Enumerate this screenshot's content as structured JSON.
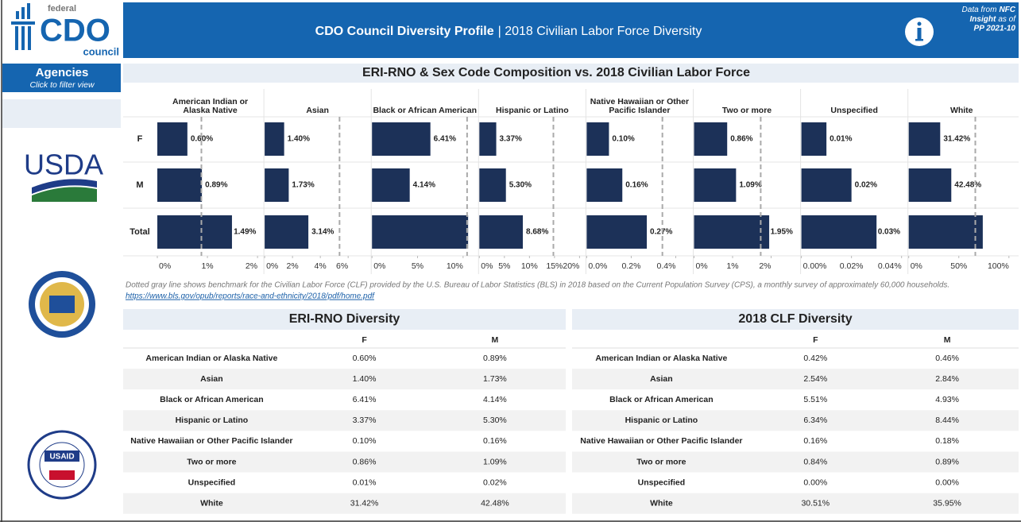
{
  "header": {
    "logo": [
      "federal",
      "CDO",
      "council"
    ],
    "title": "CDO Council Diversity Profile",
    "subtitle": "| 2018 Civilian Labor Force Diversity",
    "source": [
      "Data from",
      "NFC",
      "Insight",
      "as of",
      "PP 2021-10"
    ]
  },
  "sidebar": {
    "title": "Agencies",
    "subtitle": "Click to filter view",
    "agencies": [
      "USDA",
      "USAID"
    ]
  },
  "chart_data": {
    "type": "bar",
    "title": "ERI-RNO & Sex Code Composition vs. 2018 Civilian Labor Force",
    "categories": [
      "F",
      "M",
      "Total"
    ],
    "color": "#1c3158",
    "benchmark_color": "#aaaaaa",
    "panels": [
      {
        "name": "American Indian or Alaska Native",
        "values": [
          0.6,
          0.89,
          1.49
        ],
        "value_labels": [
          "0.60%",
          "0.89%",
          "1.49%"
        ],
        "benchmark": 0.88,
        "xlim": [
          0,
          2
        ],
        "xticks": [
          {
            "value": 0,
            "label": "0%"
          },
          {
            "value": 1,
            "label": "1%"
          },
          {
            "value": 2,
            "label": "2%"
          }
        ]
      },
      {
        "name": "Asian",
        "values": [
          1.4,
          1.73,
          3.14
        ],
        "value_labels": [
          "1.40%",
          "1.73%",
          "3.14%"
        ],
        "benchmark": 5.38,
        "xlim": [
          0,
          7.2
        ],
        "xticks": [
          {
            "value": 0,
            "label": "0%"
          },
          {
            "value": 2,
            "label": "2%"
          },
          {
            "value": 4,
            "label": "4%"
          },
          {
            "value": 6,
            "label": "6%"
          }
        ]
      },
      {
        "name": "Black or African American",
        "values": [
          6.41,
          4.14,
          10.55
        ],
        "value_labels": [
          "6.41%",
          "4.14%",
          null
        ],
        "benchmark": 10.44,
        "xlim": [
          0,
          11
        ],
        "xticks": [
          {
            "value": 0,
            "label": "0%"
          },
          {
            "value": 5,
            "label": "5%"
          },
          {
            "value": 10,
            "label": "10%"
          }
        ]
      },
      {
        "name": "Hispanic or Latino",
        "values": [
          3.37,
          5.3,
          8.68
        ],
        "value_labels": [
          "3.37%",
          "5.30%",
          "8.68%"
        ],
        "benchmark": 14.78,
        "xlim": [
          0,
          20
        ],
        "xticks": [
          {
            "value": 0,
            "label": "0%"
          },
          {
            "value": 5,
            "label": "5%"
          },
          {
            "value": 10,
            "label": "10%"
          },
          {
            "value": 15,
            "label": "15%"
          },
          {
            "value": 20,
            "label": "20%"
          }
        ]
      },
      {
        "name": "Native Hawaiian or Other Pacific Islander",
        "values": [
          0.1,
          0.16,
          0.27
        ],
        "value_labels": [
          "0.10%",
          "0.16%",
          "0.27%"
        ],
        "benchmark": 0.34,
        "xlim": [
          0,
          0.45
        ],
        "xticks": [
          {
            "value": 0,
            "label": "0.0%"
          },
          {
            "value": 0.2,
            "label": "0.2%"
          },
          {
            "value": 0.4,
            "label": "0.4%"
          }
        ]
      },
      {
        "name": "Two or more",
        "values": [
          0.86,
          1.09,
          1.95
        ],
        "value_labels": [
          "0.86%",
          "1.09%",
          "1.95%"
        ],
        "benchmark": 1.73,
        "xlim": [
          0,
          2.6
        ],
        "xticks": [
          {
            "value": 0,
            "label": "0%"
          },
          {
            "value": 1,
            "label": "1%"
          },
          {
            "value": 2,
            "label": "2%"
          }
        ]
      },
      {
        "name": "Unspecified",
        "values": [
          0.01,
          0.02,
          0.03
        ],
        "value_labels": [
          "0.01%",
          "0.02%",
          "0.03%"
        ],
        "benchmark": null,
        "xlim": [
          0,
          0.04
        ],
        "xticks": [
          {
            "value": 0,
            "label": "0.00%"
          },
          {
            "value": 0.02,
            "label": "0.02%"
          },
          {
            "value": 0.04,
            "label": "0.04%"
          }
        ]
      },
      {
        "name": "White",
        "values": [
          31.42,
          42.48,
          73.9
        ],
        "value_labels": [
          "31.42%",
          "42.48%",
          null
        ],
        "benchmark": 66.46,
        "xlim": [
          0,
          100
        ],
        "xticks": [
          {
            "value": 0,
            "label": "0%"
          },
          {
            "value": 50,
            "label": "50%"
          },
          {
            "value": 100,
            "label": "100%"
          }
        ]
      }
    ],
    "note": "Dotted gray line shows benchmark for the Civilian Labor Force (CLF) provided by the U.S. Bureau of Labor Statistics (BLS) in 2018 based on the Current Population Survey (CPS), a monthly survey of approximately 60,000 households.",
    "link": "https://www.bls.gov/opub/reports/race-and-ethnicity/2018/pdf/home.pdf"
  },
  "tables": [
    {
      "title": "ERI-RNO Diversity",
      "columns": [
        "F",
        "M"
      ],
      "rows": [
        [
          "American Indian or Alaska Native",
          "0.60%",
          "0.89%"
        ],
        [
          "Asian",
          "1.40%",
          "1.73%"
        ],
        [
          "Black or African American",
          "6.41%",
          "4.14%"
        ],
        [
          "Hispanic or Latino",
          "3.37%",
          "5.30%"
        ],
        [
          "Native Hawaiian or Other Pacific Islander",
          "0.10%",
          "0.16%"
        ],
        [
          "Two or more",
          "0.86%",
          "1.09%"
        ],
        [
          "Unspecified",
          "0.01%",
          "0.02%"
        ],
        [
          "White",
          "31.42%",
          "42.48%"
        ]
      ]
    },
    {
      "title": "2018 CLF Diversity",
      "columns": [
        "F",
        "M"
      ],
      "rows": [
        [
          "American Indian or Alaska Native",
          "0.42%",
          "0.46%"
        ],
        [
          "Asian",
          "2.54%",
          "2.84%"
        ],
        [
          "Black or African American",
          "5.51%",
          "4.93%"
        ],
        [
          "Hispanic or Latino",
          "6.34%",
          "8.44%"
        ],
        [
          "Native Hawaiian or Other Pacific Islander",
          "0.16%",
          "0.18%"
        ],
        [
          "Two or more",
          "0.84%",
          "0.89%"
        ],
        [
          "Unspecified",
          "0.00%",
          "0.00%"
        ],
        [
          "White",
          "30.51%",
          "35.95%"
        ]
      ]
    }
  ]
}
